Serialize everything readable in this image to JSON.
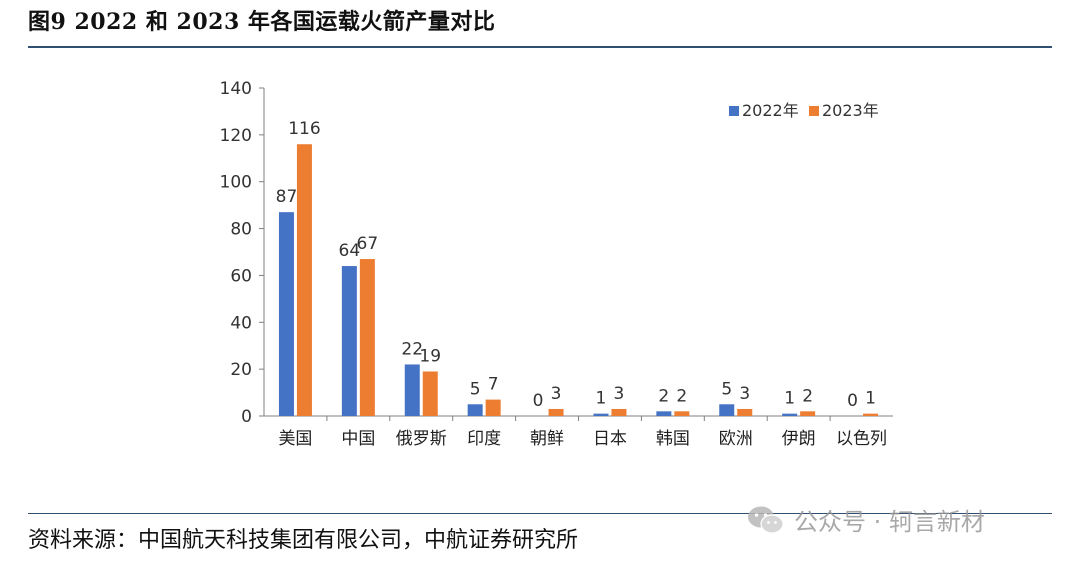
{
  "figure": {
    "title": "图9  2022 和 2023 年各国运载火箭产量对比",
    "source": "资料来源：中国航天科技集团有限公司，中航证券研究所",
    "watermark": "公众号 · 轲言新材"
  },
  "colors": {
    "series_2022": "#4472c4",
    "series_2023": "#ed7d31",
    "rule": "#2f4f73",
    "axis": "#808080"
  },
  "chart_data": {
    "type": "bar",
    "title": "",
    "xlabel": "",
    "ylabel": "",
    "categories": [
      "美国",
      "中国",
      "俄罗斯",
      "印度",
      "朝鲜",
      "日本",
      "韩国",
      "欧洲",
      "伊朗",
      "以色列"
    ],
    "series": [
      {
        "name": "2022年",
        "values": [
          87,
          64,
          22,
          5,
          0,
          1,
          2,
          5,
          1,
          0
        ]
      },
      {
        "name": "2023年",
        "values": [
          116,
          67,
          19,
          7,
          3,
          3,
          2,
          3,
          2,
          1
        ]
      }
    ],
    "ylim": [
      0,
      140
    ],
    "yticks": [
      0,
      20,
      40,
      60,
      80,
      100,
      120,
      140
    ],
    "grid": false,
    "data_labels": true,
    "legend_position": "top-right"
  }
}
